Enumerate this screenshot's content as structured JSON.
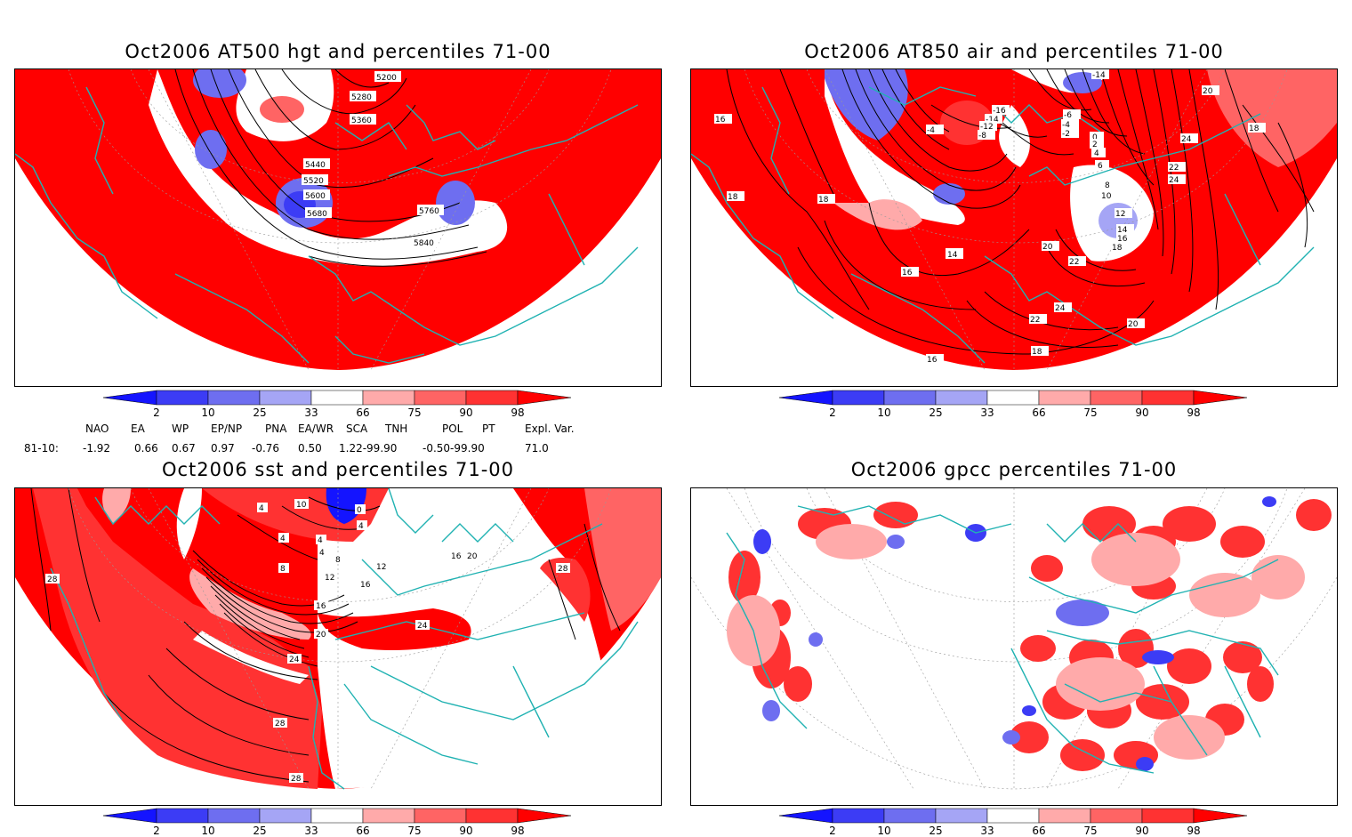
{
  "panels": [
    {
      "id": "hgt500",
      "title": "Oct2006 AT500 hgt and percentiles 71-00",
      "contour_labels": [
        "5200",
        "5280",
        "5360",
        "5440",
        "5520",
        "5600",
        "5680",
        "5760",
        "5840"
      ]
    },
    {
      "id": "air850",
      "title": "Oct2006 AT850 air and percentiles 71-00",
      "contour_labels": [
        "-14",
        "-16",
        "-14",
        "-12",
        "-8",
        "-6",
        "-4",
        "-4",
        "-2",
        "0",
        "2",
        "4",
        "6",
        "8",
        "10",
        "12",
        "14",
        "14",
        "16",
        "16",
        "18",
        "18",
        "18",
        "20",
        "20",
        "22",
        "22",
        "24",
        "24",
        "18",
        "20",
        "16",
        "16",
        "22",
        "24",
        "18"
      ]
    },
    {
      "id": "sst",
      "title": "Oct2006 sst and percentiles 71-00",
      "contour_labels": [
        "4",
        "10",
        "0",
        "4",
        "4",
        "4",
        "8",
        "8",
        "4",
        "12",
        "12",
        "16",
        "16",
        "16",
        "20",
        "20",
        "24",
        "24",
        "28",
        "28",
        "28",
        "28"
      ]
    },
    {
      "id": "gpcc",
      "title": "Oct2006 gpcc percentiles 71-00",
      "contour_labels": []
    }
  ],
  "colorbar": {
    "ticks": [
      "2",
      "10",
      "25",
      "33",
      "66",
      "75",
      "90",
      "98"
    ],
    "colors": {
      "lt2": "#1414ff",
      "2to10": "#3c3cf5",
      "10to25": "#6e6ef0",
      "25to33": "#a5a5f5",
      "33to66": "#ffffff",
      "66to75": "#ffaaaa",
      "75to90": "#ff6464",
      "90to98": "#ff3232",
      "gt98": "#ff0000"
    }
  },
  "teleconnections": {
    "headers": [
      "NAO",
      "EA",
      "WP",
      "EP/NP",
      "PNA",
      "EA/WR",
      "SCA",
      "TNH",
      "POL",
      "PT",
      "Expl. Var."
    ],
    "row_label": "81-10:",
    "values": [
      "-1.92",
      "0.66",
      "0.67",
      "0.97",
      "-0.76",
      "0.50",
      "1.22-99.90",
      "-0.50-99.90",
      "71.0"
    ]
  },
  "colors": {
    "land_outline": "#20b2b2",
    "contour": "#000000",
    "grid": "#999999"
  }
}
